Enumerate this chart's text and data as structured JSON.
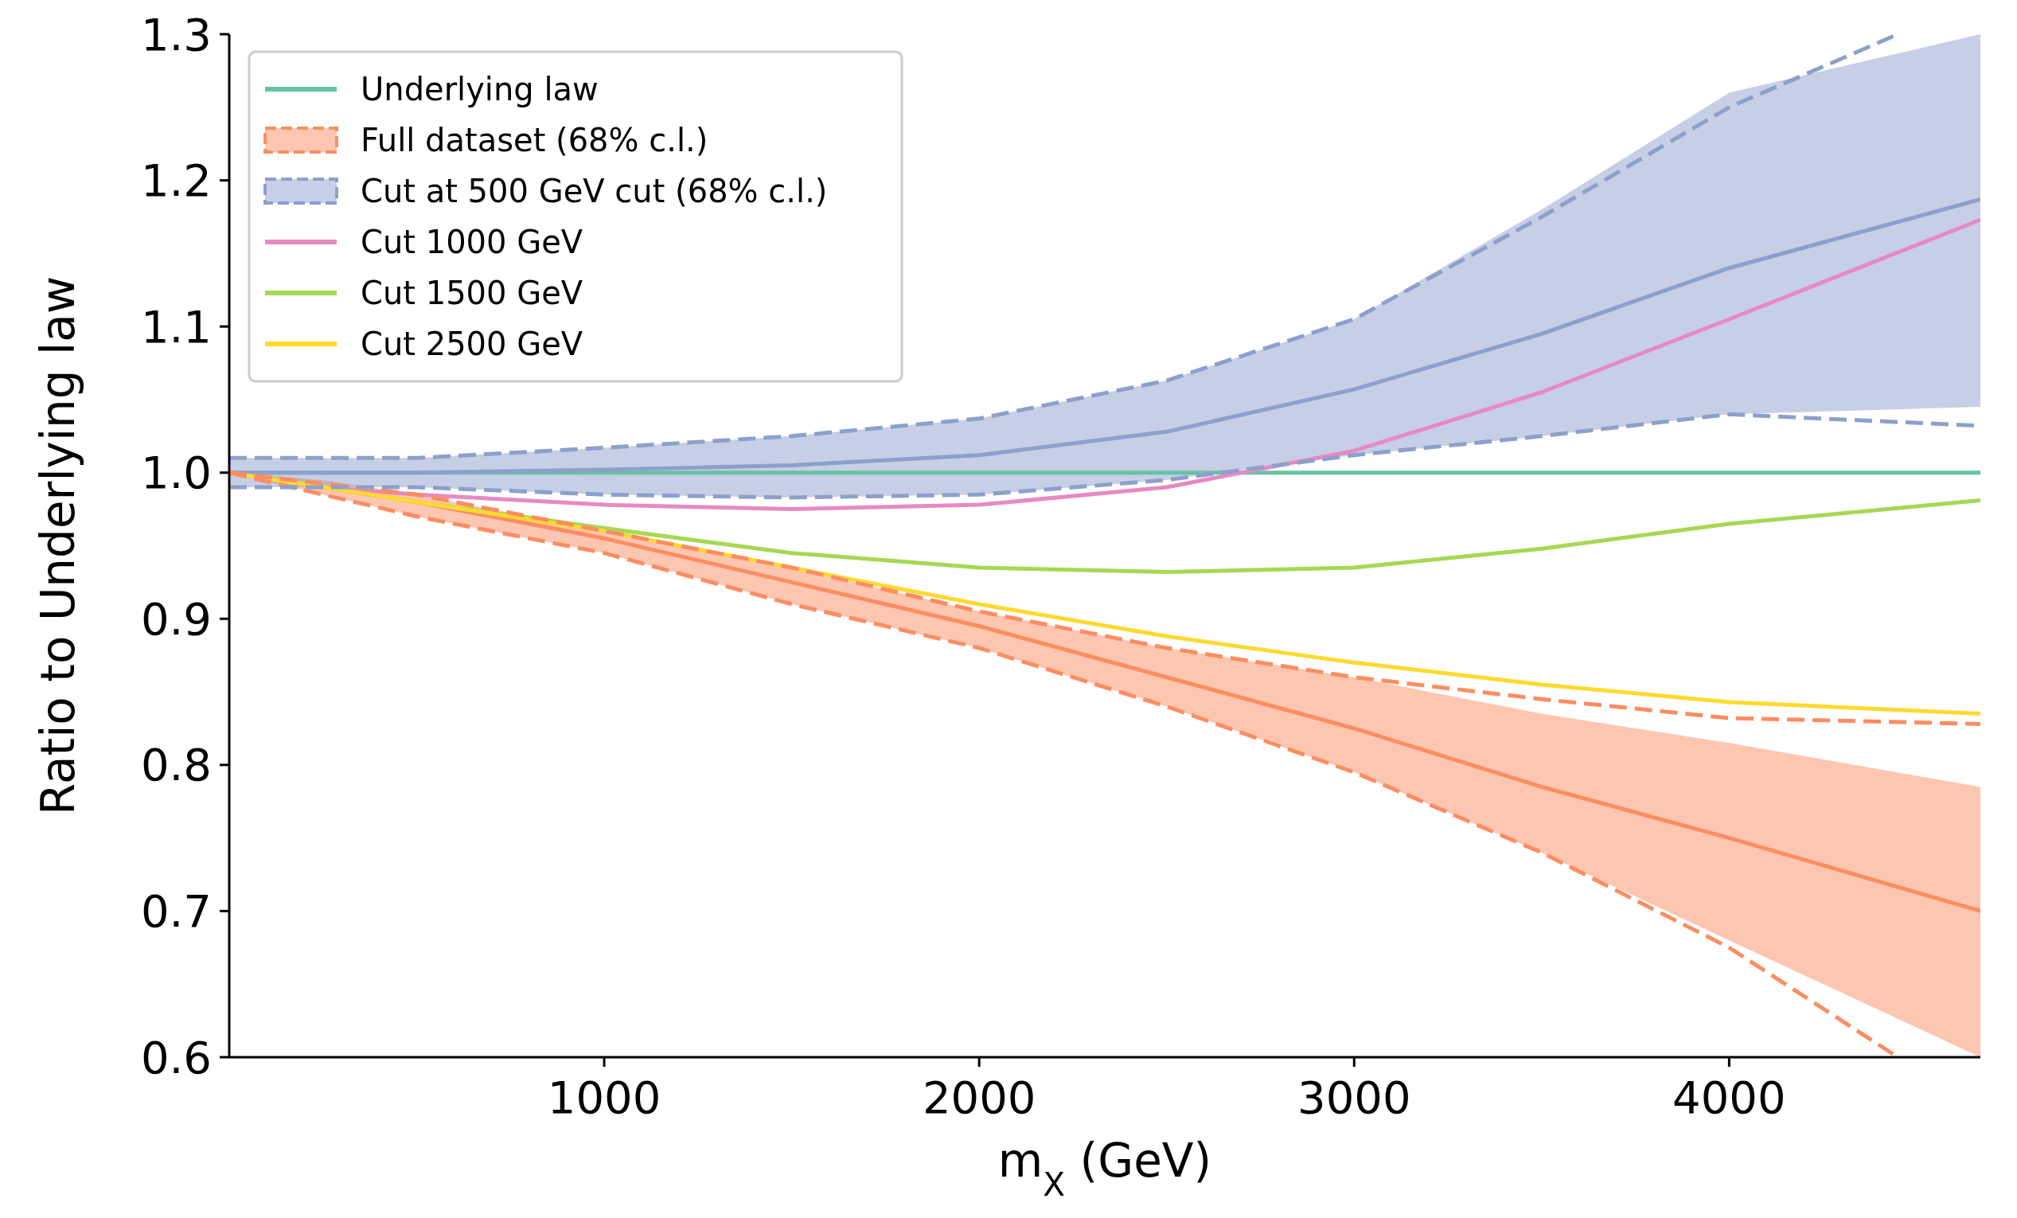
{
  "chart_data": {
    "type": "line",
    "xlabel": "m$_{X}$ (GeV)",
    "ylabel": "Ratio to Underlying law",
    "xlim": [
      0,
      4670
    ],
    "ylim": [
      0.6,
      1.3
    ],
    "xticks": [
      1000,
      2000,
      3000,
      4000
    ],
    "yticks": [
      0.6,
      0.7,
      0.8,
      0.9,
      {
        "value": 1,
        "label": "1.0"
      },
      1.1,
      1.2,
      1.3
    ],
    "legend": "top left",
    "grid": false,
    "x": [
      0,
      250,
      500,
      1000,
      1500,
      2000,
      2500,
      3000,
      3500,
      4000,
      4670
    ],
    "series": [
      {
        "name": "Underlying law",
        "color": "#66c2a5",
        "values": [
          1.0,
          1.0,
          1.0,
          1.0,
          1.0,
          1.0,
          1.0,
          1.0,
          1.0,
          1.0,
          1.0
        ]
      },
      {
        "name": "Full dataset (68% c.l.)",
        "color": "#fc8d62",
        "values": [
          1.0,
          0.99,
          0.98,
          0.955,
          0.925,
          0.895,
          0.86,
          0.825,
          0.785,
          0.75,
          0.7
        ],
        "lower": [
          1.0,
          0.985,
          0.97,
          0.945,
          0.91,
          0.88,
          0.84,
          0.795,
          0.74,
          0.68,
          0.6
        ],
        "upper": [
          1.0,
          0.995,
          0.985,
          0.96,
          0.935,
          0.905,
          0.88,
          0.86,
          0.835,
          0.815,
          0.785
        ]
      },
      {
        "name": "Cut at 500 GeV cut (68% c.l.)",
        "color": "#8da0cb",
        "values": [
          1.0,
          1.0,
          1.0,
          1.002,
          1.005,
          1.012,
          1.028,
          1.057,
          1.095,
          1.14,
          1.187
        ],
        "lower": [
          0.99,
          0.99,
          0.99,
          0.985,
          0.983,
          0.985,
          0.995,
          1.012,
          1.025,
          1.04,
          1.045
        ],
        "upper": [
          1.01,
          1.01,
          1.01,
          1.017,
          1.025,
          1.037,
          1.063,
          1.105,
          1.18,
          1.26,
          1.3
        ]
      },
      {
        "name": "Cut 1000 GeV",
        "color": "#e78ac3",
        "values": [
          1.0,
          0.99,
          0.985,
          0.978,
          0.975,
          0.978,
          0.99,
          1.015,
          1.055,
          1.105,
          1.173
        ]
      },
      {
        "name": "Cut 1500 GeV",
        "color": "#a6d854",
        "values": [
          1.0,
          0.99,
          0.98,
          0.962,
          0.945,
          0.935,
          0.932,
          0.935,
          0.948,
          0.965,
          0.981
        ]
      },
      {
        "name": "Cut 2500 GeV",
        "color": "#ffd92f",
        "values": [
          1.0,
          0.99,
          0.98,
          0.96,
          0.935,
          0.91,
          0.888,
          0.87,
          0.855,
          0.843,
          0.835
        ]
      },
      {
        "color": "#fc8d62",
        "line_style": "dashed",
        "x": [
          0,
          500,
          1000,
          1500,
          2000,
          2500,
          3000,
          3500,
          4000,
          4670
        ],
        "values": [
          1.0,
          0.985,
          0.96,
          0.935,
          0.905,
          0.88,
          0.86,
          0.845,
          0.832,
          0.828
        ]
      },
      {
        "color": "#fc8d62",
        "line_style": "dashed",
        "x": [
          0,
          500,
          1000,
          1500,
          2000,
          2500,
          3000,
          3500,
          4000,
          4450
        ],
        "values": [
          1.0,
          0.97,
          0.945,
          0.91,
          0.88,
          0.84,
          0.795,
          0.74,
          0.675,
          0.6
        ]
      },
      {
        "color": "#8da0cb",
        "line_style": "dashed",
        "x": [
          0,
          500,
          1000,
          1500,
          2000,
          2500,
          3000,
          3500,
          4000,
          4450
        ],
        "values": [
          1.01,
          1.01,
          1.017,
          1.025,
          1.037,
          1.063,
          1.105,
          1.175,
          1.25,
          1.3
        ]
      },
      {
        "color": "#8da0cb",
        "line_style": "dashed",
        "x": [
          0,
          500,
          1000,
          1500,
          2000,
          2500,
          3000,
          3500,
          4000,
          4670
        ],
        "values": [
          0.99,
          0.99,
          0.985,
          0.983,
          0.985,
          0.995,
          1.012,
          1.025,
          1.04,
          1.032
        ]
      }
    ]
  }
}
